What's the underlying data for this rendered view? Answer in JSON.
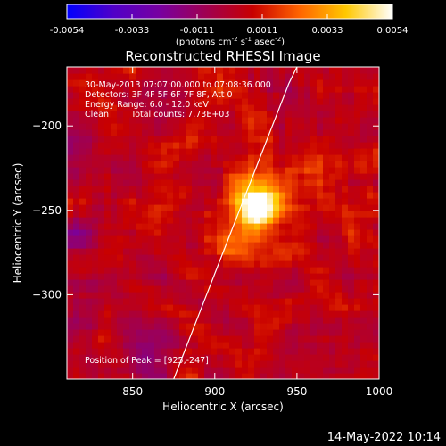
{
  "chart_data": {
    "type": "heatmap",
    "title": "Reconstructed RHESSI Image",
    "xlabel": "Heliocentric X (arcsec)",
    "ylabel": "Heliocentric Y (arcsec)",
    "xlim": [
      810,
      1000
    ],
    "ylim": [
      -350,
      -165
    ],
    "x_ticks": [
      850,
      900,
      950,
      1000
    ],
    "y_ticks": [
      -200,
      -250,
      -300
    ],
    "colorbar": {
      "range": [
        -0.0054,
        0.0054
      ],
      "ticks": [
        "-0.0054",
        "-0.0033",
        "-0.0011",
        "0.0011",
        "0.0033",
        "0.0054"
      ],
      "unit_prefix": "(photons cm",
      "unit_exp1": "-2",
      "unit_mid1": " s",
      "unit_exp2": "-1",
      "unit_mid2": " asec",
      "unit_exp3": "-2",
      "unit_suffix": ")",
      "colors": [
        "#0000ff",
        "#5000c8",
        "#7800a0",
        "#a00050",
        "#c80000",
        "#ff6400",
        "#ffc800",
        "#ffffff"
      ]
    },
    "peak": {
      "x": 925,
      "y": -247,
      "value": 0.0054
    },
    "limb_curve": [
      [
        875,
        -350
      ],
      [
        885,
        -325
      ],
      [
        895,
        -300
      ],
      [
        905,
        -275
      ],
      [
        915,
        -250
      ],
      [
        925,
        -225
      ],
      [
        935,
        -200
      ],
      [
        945,
        -175
      ],
      [
        950,
        -165
      ]
    ],
    "annotations": {
      "time": "30-May-2013 07:07:00.000 to 07:08:36.000",
      "detectors": "Detectors: 3F 4F 5F 6F 7F 8F, Att 0",
      "energy": "Energy Range: 6.0 - 12.0 keV",
      "clean_label": "Clean",
      "total_counts": "Total counts: 7.73E+03",
      "peak_position": "Position of Peak = [925,-247]"
    }
  },
  "footer": {
    "timestamp": "14-May-2022 10:14"
  }
}
